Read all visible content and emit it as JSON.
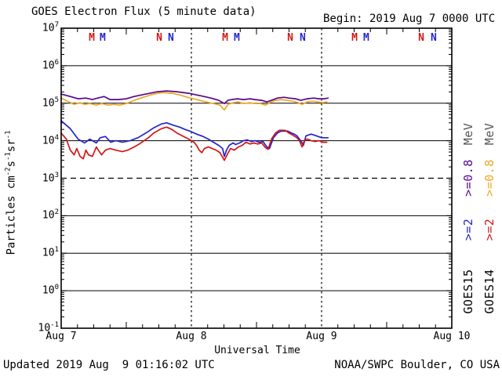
{
  "header": {
    "title": "GOES Electron Flux (5 minute data)",
    "begin_label": "Begin: 2019 Aug 7 0000 UTC"
  },
  "footer": {
    "updated": "Updated 2019 Aug  9 01:16:02 UTC",
    "source": "NOAA/SWPC Boulder, CO USA"
  },
  "colors": {
    "goes15_e2": "#2424CE",
    "goes14_e2": "#D51515",
    "goes15_e08": "#55078E",
    "goes14_e08": "#EFA820",
    "axis": "#000000",
    "mev_text": "#555555"
  },
  "legend": {
    "columns": [
      {
        "satellite": "GOES15",
        "e2_label": ">=2",
        "e08_label": ">=0.8",
        "mev_label": "MeV",
        "e2_color_key": "goes15_e2",
        "e08_color_key": "goes15_e08"
      },
      {
        "satellite": "GOES14",
        "e2_label": ">=2",
        "e08_label": ">=0.8",
        "mev_label": "MeV",
        "e2_color_key": "goes14_e2",
        "e08_color_key": "goes14_e08"
      }
    ]
  },
  "chart_data": {
    "type": "line",
    "title": "GOES Electron Flux (5 minute data)",
    "xlabel": "Universal Time",
    "ylabel_segments": [
      {
        "text": "Particles cm"
      },
      {
        "sup": "-2"
      },
      {
        "text": "s"
      },
      {
        "sup": "-1"
      },
      {
        "text": "sr"
      },
      {
        "sup": "-1"
      }
    ],
    "x_unit_note": "days since plot begin (2019 Aug 7 0000 UTC)",
    "x_range_days": [
      0,
      3
    ],
    "x_ticks": [
      {
        "label": "Aug 7",
        "day": 0
      },
      {
        "label": "Aug 8",
        "day": 1
      },
      {
        "label": "Aug 9",
        "day": 2
      },
      {
        "label": "Aug 10",
        "day": 3
      }
    ],
    "minor_tick_hours": 3,
    "y_scale": "log10",
    "ylim_log": [
      -1,
      7
    ],
    "y_exponents": [
      7,
      6,
      5,
      4,
      3,
      2,
      1,
      0,
      -1
    ],
    "grid": {
      "solid_gridlines_log": [
        6,
        5,
        4,
        2,
        1,
        0
      ],
      "dashed_gridlines_log": [
        3
      ],
      "day_boundary_dotted_days": [
        1,
        2
      ]
    },
    "top_markers": [
      {
        "label": "M",
        "color_key": "goes14_e2",
        "day": 0.235
      },
      {
        "label": "M",
        "color_key": "goes15_e2",
        "day": 0.319
      },
      {
        "label": "N",
        "color_key": "goes14_e2",
        "day": 0.753
      },
      {
        "label": "N",
        "color_key": "goes15_e2",
        "day": 0.843
      },
      {
        "label": "M",
        "color_key": "goes14_e2",
        "day": 1.259
      },
      {
        "label": "M",
        "color_key": "goes15_e2",
        "day": 1.349
      },
      {
        "label": "N",
        "color_key": "goes14_e2",
        "day": 1.759
      },
      {
        "label": "N",
        "color_key": "goes15_e2",
        "day": 1.855
      },
      {
        "label": "M",
        "color_key": "goes14_e2",
        "day": 2.253
      },
      {
        "label": "M",
        "color_key": "goes15_e2",
        "day": 2.343
      },
      {
        "label": "N",
        "color_key": "goes14_e2",
        "day": 2.765
      },
      {
        "label": "N",
        "color_key": "goes15_e2",
        "day": 2.861
      }
    ],
    "series": [
      {
        "name": "GOES15 >=0.8 MeV",
        "color_key": "goes15_e08",
        "points": [
          [
            0,
            175000
          ],
          [
            0.07,
            151000
          ],
          [
            0.13,
            131000
          ],
          [
            0.19,
            137000
          ],
          [
            0.24,
            125000
          ],
          [
            0.28,
            137000
          ],
          [
            0.33,
            151000
          ],
          [
            0.375,
            125000
          ],
          [
            0.44,
            125000
          ],
          [
            0.5,
            131000
          ],
          [
            0.56,
            151000
          ],
          [
            0.65,
            175000
          ],
          [
            0.74,
            202000
          ],
          [
            0.81,
            212000
          ],
          [
            0.89,
            202000
          ],
          [
            0.98,
            184000
          ],
          [
            1.07,
            158000
          ],
          [
            1.15,
            137000
          ],
          [
            1.21,
            119000
          ],
          [
            1.253,
            98000
          ],
          [
            1.28,
            119000
          ],
          [
            1.31,
            125000
          ],
          [
            1.355,
            131000
          ],
          [
            1.4,
            125000
          ],
          [
            1.45,
            131000
          ],
          [
            1.49,
            125000
          ],
          [
            1.54,
            119000
          ],
          [
            1.58,
            108000
          ],
          [
            1.615,
            119000
          ],
          [
            1.66,
            137000
          ],
          [
            1.71,
            144000
          ],
          [
            1.75,
            137000
          ],
          [
            1.8,
            131000
          ],
          [
            1.84,
            119000
          ],
          [
            1.89,
            131000
          ],
          [
            1.94,
            137000
          ],
          [
            1.98,
            131000
          ],
          [
            2.02,
            131000
          ],
          [
            2.05,
            137000
          ]
        ]
      },
      {
        "name": "GOES14 >=0.8 MeV",
        "color_key": "goes14_e08",
        "points": [
          [
            0,
            137000
          ],
          [
            0.06,
            108000
          ],
          [
            0.1,
            93000
          ],
          [
            0.145,
            103000
          ],
          [
            0.18,
            93000
          ],
          [
            0.22,
            98000
          ],
          [
            0.27,
            89000
          ],
          [
            0.31,
            98000
          ],
          [
            0.36,
            89000
          ],
          [
            0.405,
            93000
          ],
          [
            0.45,
            89000
          ],
          [
            0.5,
            98000
          ],
          [
            0.56,
            119000
          ],
          [
            0.63,
            144000
          ],
          [
            0.71,
            175000
          ],
          [
            0.78,
            193000
          ],
          [
            0.85,
            184000
          ],
          [
            0.91,
            166000
          ],
          [
            0.97,
            144000
          ],
          [
            1.04,
            125000
          ],
          [
            1.11,
            108000
          ],
          [
            1.17,
            98000
          ],
          [
            1.22,
            89000
          ],
          [
            1.253,
            66000
          ],
          [
            1.28,
            93000
          ],
          [
            1.32,
            103000
          ],
          [
            1.36,
            108000
          ],
          [
            1.4,
            98000
          ],
          [
            1.445,
            103000
          ],
          [
            1.49,
            98000
          ],
          [
            1.53,
            98000
          ],
          [
            1.57,
            89000
          ],
          [
            1.6,
            103000
          ],
          [
            1.645,
            119000
          ],
          [
            1.69,
            125000
          ],
          [
            1.735,
            119000
          ],
          [
            1.78,
            113000
          ],
          [
            1.82,
            103000
          ],
          [
            1.85,
            93000
          ],
          [
            1.89,
            108000
          ],
          [
            1.93,
            113000
          ],
          [
            1.97,
            108000
          ],
          [
            2.01,
            103000
          ],
          [
            2.04,
            108000
          ]
        ]
      },
      {
        "name": "GOES15 >=2 MeV",
        "color_key": "goes15_e2",
        "points": [
          [
            0,
            34000
          ],
          [
            0.07,
            21000
          ],
          [
            0.13,
            11000
          ],
          [
            0.18,
            8700
          ],
          [
            0.22,
            11000
          ],
          [
            0.27,
            8700
          ],
          [
            0.3,
            12000
          ],
          [
            0.34,
            13000
          ],
          [
            0.38,
            9100
          ],
          [
            0.42,
            10000
          ],
          [
            0.47,
            9100
          ],
          [
            0.53,
            10000
          ],
          [
            0.59,
            12000
          ],
          [
            0.65,
            16000
          ],
          [
            0.71,
            22000
          ],
          [
            0.77,
            28000
          ],
          [
            0.81,
            30000
          ],
          [
            0.86,
            26000
          ],
          [
            0.91,
            23000
          ],
          [
            0.95,
            20000
          ],
          [
            0.99,
            18000
          ],
          [
            1.04,
            15000
          ],
          [
            1.09,
            13000
          ],
          [
            1.13,
            11000
          ],
          [
            1.17,
            9100
          ],
          [
            1.21,
            7500
          ],
          [
            1.24,
            6200
          ],
          [
            1.253,
            3800
          ],
          [
            1.27,
            5600
          ],
          [
            1.29,
            7500
          ],
          [
            1.32,
            8700
          ],
          [
            1.34,
            7900
          ],
          [
            1.37,
            8700
          ],
          [
            1.4,
            10000
          ],
          [
            1.43,
            10500
          ],
          [
            1.46,
            9500
          ],
          [
            1.49,
            10000
          ],
          [
            1.52,
            9100
          ],
          [
            1.55,
            9500
          ],
          [
            1.58,
            6800
          ],
          [
            1.6,
            6200
          ],
          [
            1.63,
            12000
          ],
          [
            1.66,
            16000
          ],
          [
            1.69,
            18000
          ],
          [
            1.74,
            18000
          ],
          [
            1.77,
            16000
          ],
          [
            1.79,
            15000
          ],
          [
            1.81,
            13500
          ],
          [
            1.84,
            10000
          ],
          [
            1.86,
            7500
          ],
          [
            1.88,
            13500
          ],
          [
            1.92,
            15000
          ],
          [
            1.96,
            13500
          ],
          [
            2.0,
            12000
          ],
          [
            2.05,
            12000
          ]
        ]
      },
      {
        "name": "GOES14 >=2 MeV",
        "color_key": "goes14_e2",
        "points": [
          [
            0,
            16000
          ],
          [
            0.04,
            11000
          ],
          [
            0.07,
            5600
          ],
          [
            0.1,
            4200
          ],
          [
            0.12,
            6200
          ],
          [
            0.145,
            3800
          ],
          [
            0.17,
            3300
          ],
          [
            0.19,
            5600
          ],
          [
            0.21,
            4200
          ],
          [
            0.24,
            3800
          ],
          [
            0.27,
            6800
          ],
          [
            0.29,
            5300
          ],
          [
            0.31,
            4200
          ],
          [
            0.34,
            5600
          ],
          [
            0.375,
            6200
          ],
          [
            0.42,
            5600
          ],
          [
            0.47,
            5100
          ],
          [
            0.51,
            5600
          ],
          [
            0.56,
            6800
          ],
          [
            0.6,
            8200
          ],
          [
            0.67,
            12000
          ],
          [
            0.71,
            16000
          ],
          [
            0.77,
            21000
          ],
          [
            0.81,
            23000
          ],
          [
            0.85,
            20000
          ],
          [
            0.89,
            16000
          ],
          [
            0.93,
            13500
          ],
          [
            0.98,
            11000
          ],
          [
            1.02,
            9100
          ],
          [
            1.04,
            7500
          ],
          [
            1.06,
            5600
          ],
          [
            1.08,
            4800
          ],
          [
            1.1,
            6200
          ],
          [
            1.13,
            6800
          ],
          [
            1.16,
            6200
          ],
          [
            1.19,
            5600
          ],
          [
            1.22,
            4800
          ],
          [
            1.253,
            3000
          ],
          [
            1.28,
            4600
          ],
          [
            1.3,
            6200
          ],
          [
            1.33,
            5600
          ],
          [
            1.36,
            6800
          ],
          [
            1.39,
            7500
          ],
          [
            1.42,
            9100
          ],
          [
            1.45,
            8200
          ],
          [
            1.48,
            8700
          ],
          [
            1.51,
            8200
          ],
          [
            1.54,
            8700
          ],
          [
            1.57,
            6500
          ],
          [
            1.59,
            5900
          ],
          [
            1.615,
            11000
          ],
          [
            1.645,
            16000
          ],
          [
            1.675,
            19000
          ],
          [
            1.72,
            19000
          ],
          [
            1.75,
            16000
          ],
          [
            1.78,
            14000
          ],
          [
            1.81,
            12000
          ],
          [
            1.83,
            10000
          ],
          [
            1.85,
            6800
          ],
          [
            1.87,
            10500
          ],
          [
            1.89,
            11000
          ],
          [
            1.92,
            10000
          ],
          [
            1.95,
            9500
          ],
          [
            1.98,
            10000
          ],
          [
            2.01,
            9100
          ],
          [
            2.04,
            9100
          ]
        ]
      }
    ]
  }
}
